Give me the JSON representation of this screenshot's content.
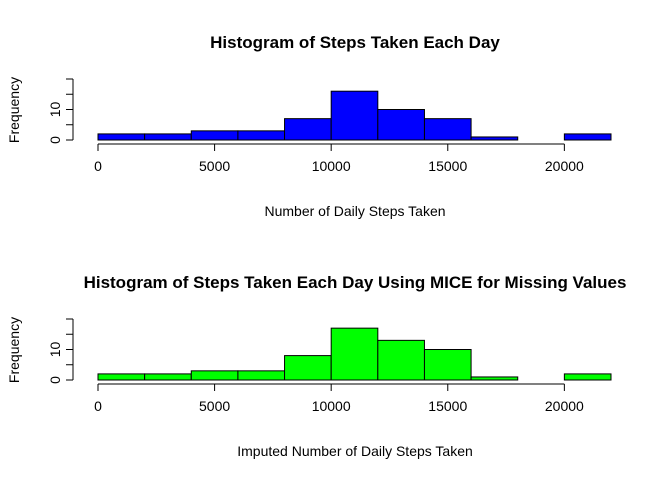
{
  "chart_data": [
    {
      "type": "bar",
      "title": "Histogram of Steps Taken Each Day",
      "xlabel": "Number of Daily Steps Taken",
      "ylabel": "Frequency",
      "bin_edges": [
        0,
        2000,
        4000,
        6000,
        8000,
        10000,
        12000,
        14000,
        16000,
        18000,
        20000,
        22000
      ],
      "values": [
        2,
        2,
        3,
        3,
        7,
        16,
        10,
        7,
        1,
        0,
        2
      ],
      "xlim": [
        0,
        22000
      ],
      "ylim": [
        0,
        20
      ],
      "x_ticks": [
        0,
        5000,
        10000,
        15000,
        20000
      ],
      "x_tick_labels": [
        "0",
        "5000",
        "10000",
        "15000",
        "20000"
      ],
      "y_ticks": [
        0,
        10
      ],
      "y_tick_labels": [
        "0",
        "10"
      ],
      "fill_color": "#0000ff",
      "grid": false
    },
    {
      "type": "bar",
      "title": "Histogram of Steps Taken Each Day Using MICE for Missing Values",
      "xlabel": "Imputed Number of Daily Steps Taken",
      "ylabel": "Frequency",
      "bin_edges": [
        0,
        2000,
        4000,
        6000,
        8000,
        10000,
        12000,
        14000,
        16000,
        18000,
        20000,
        22000
      ],
      "values": [
        2,
        2,
        3,
        3,
        8,
        17,
        13,
        10,
        1,
        0,
        2
      ],
      "xlim": [
        0,
        22000
      ],
      "ylim": [
        0,
        20
      ],
      "x_ticks": [
        0,
        5000,
        10000,
        15000,
        20000
      ],
      "x_tick_labels": [
        "0",
        "5000",
        "10000",
        "15000",
        "20000"
      ],
      "y_ticks": [
        0,
        10
      ],
      "y_tick_labels": [
        "0",
        "10"
      ],
      "fill_color": "#00ff00",
      "grid": false
    }
  ]
}
